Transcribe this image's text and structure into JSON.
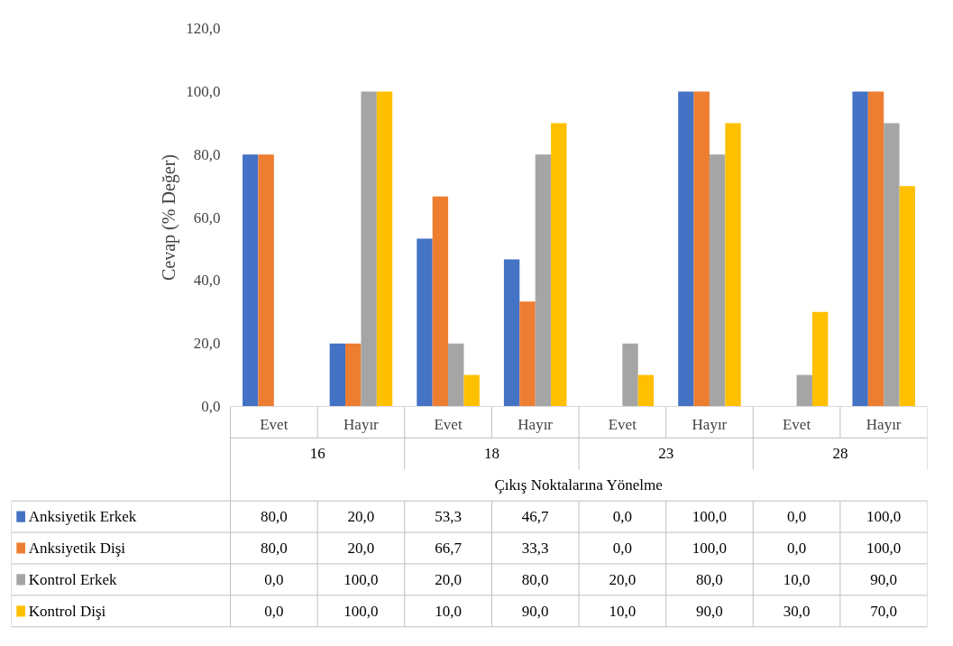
{
  "chart_data": {
    "type": "bar",
    "ylabel": "Cevap (% Değer)",
    "xlabel": "Çıkış Noktalarına Yönelme",
    "categories": [
      "Evet",
      "Hayır",
      "Evet",
      "Hayır",
      "Evet",
      "Hayır",
      "Evet",
      "Hayır"
    ],
    "annotations": [
      "16",
      "18",
      "23",
      "28"
    ],
    "series": [
      {
        "name": "Anksiyetik Erkek",
        "color": "#4472c4",
        "values": [
          80.0,
          20.0,
          53.3,
          46.7,
          0.0,
          100.0,
          0.0,
          100.0
        ],
        "value_labels": [
          "80,0",
          "20,0",
          "53,3",
          "46,7",
          "0,0",
          "100,0",
          "0,0",
          "100,0"
        ]
      },
      {
        "name": "Anksiyetik Dişi",
        "color": "#ed7d31",
        "values": [
          80.0,
          20.0,
          66.7,
          33.3,
          0.0,
          100.0,
          0.0,
          100.0
        ],
        "value_labels": [
          "80,0",
          "20,0",
          "66,7",
          "33,3",
          "0,0",
          "100,0",
          "0,0",
          "100,0"
        ]
      },
      {
        "name": "Kontrol Erkek",
        "color": "#a5a5a5",
        "values": [
          0.0,
          100.0,
          20.0,
          80.0,
          20.0,
          80.0,
          10.0,
          90.0
        ],
        "value_labels": [
          "0,0",
          "100,0",
          "20,0",
          "80,0",
          "20,0",
          "80,0",
          "10,0",
          "90,0"
        ]
      },
      {
        "name": "Kontrol Dişi",
        "color": "#ffc000",
        "values": [
          0.0,
          100.0,
          10.0,
          90.0,
          10.0,
          90.0,
          30.0,
          70.0
        ],
        "value_labels": [
          "0,0",
          "100,0",
          "10,0",
          "90,0",
          "10,0",
          "90,0",
          "30,0",
          "70,0"
        ]
      }
    ],
    "ylim": [
      0,
      120
    ],
    "yticks": [
      {
        "value": 0,
        "label": "0,0"
      },
      {
        "value": 20,
        "label": "20,0"
      },
      {
        "value": 40,
        "label": "40,0"
      },
      {
        "value": 60,
        "label": "60,0"
      },
      {
        "value": 80,
        "label": "80,0"
      },
      {
        "value": 100,
        "label": "100,0"
      },
      {
        "value": 120,
        "label": "120,0"
      }
    ],
    "grid": false,
    "legend": "bottom"
  }
}
